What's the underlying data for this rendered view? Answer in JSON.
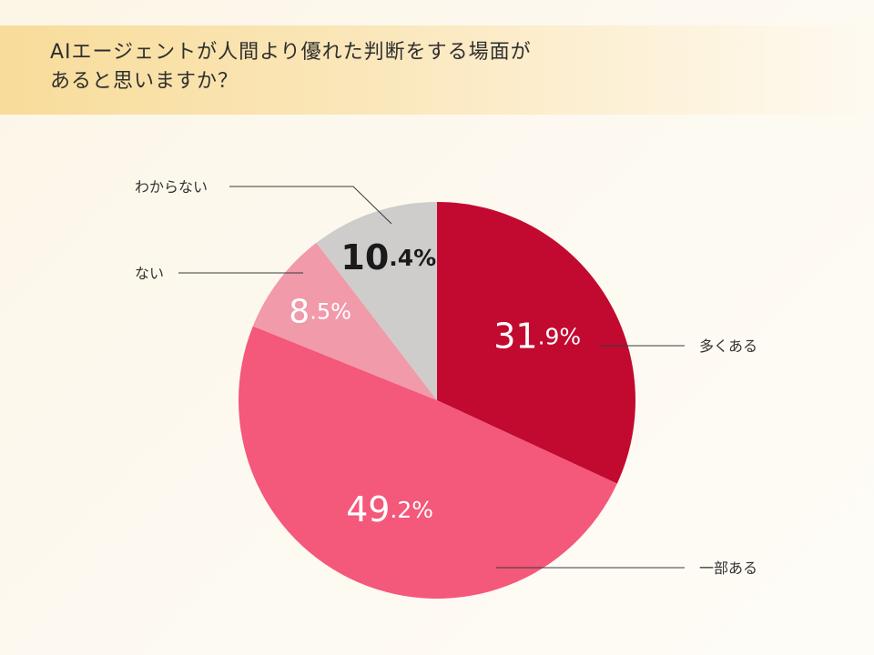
{
  "title": {
    "line1": "AIエージェントが人間より優れた判断をする場面が",
    "line2": "あると思いますか？"
  },
  "chart_data": {
    "type": "pie",
    "slices": [
      {
        "label": "多くある",
        "value": 31.9,
        "int": "31",
        "dec": ".9%",
        "color": "#c20a30",
        "text_color": "#ffffff"
      },
      {
        "label": "一部ある",
        "value": 49.2,
        "int": "49",
        "dec": ".2%",
        "color": "#f4587a",
        "text_color": "#ffffff"
      },
      {
        "label": "ない",
        "value": 8.5,
        "int": "8",
        "dec": ".5%",
        "color": "#f09aaa",
        "text_color": "#ffffff"
      },
      {
        "label": "わからない",
        "value": 10.4,
        "int": "10",
        "dec": ".4%",
        "color": "#cfcccc",
        "text_color": "#1a1a1a"
      }
    ],
    "start": "12 o'clock",
    "direction": "clockwise"
  }
}
